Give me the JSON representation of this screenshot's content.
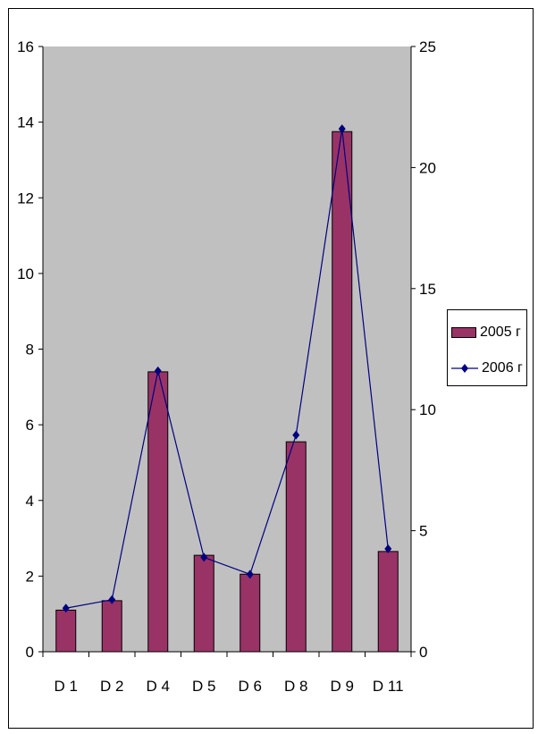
{
  "chart_data": {
    "type": "bar+line",
    "categories": [
      "D 1",
      "D 2",
      "D 4",
      "D 5",
      "D 6",
      "D 8",
      "D 9",
      "D 11"
    ],
    "series": [
      {
        "name": "2005 г",
        "type": "bar",
        "axis": "left",
        "values": [
          1.1,
          1.35,
          7.4,
          2.55,
          2.05,
          5.55,
          13.75,
          2.65
        ]
      },
      {
        "name": "2006 г",
        "type": "line",
        "axis": "right",
        "values": [
          1.8,
          2.15,
          11.6,
          3.9,
          3.2,
          8.95,
          21.6,
          4.25
        ]
      }
    ],
    "y_left": {
      "min": 0,
      "max": 16,
      "ticks": [
        "0",
        "2",
        "4",
        "6",
        "8",
        "10",
        "12",
        "14",
        "16"
      ]
    },
    "y_right": {
      "min": 0,
      "max": 25,
      "ticks": [
        "0",
        "5",
        "10",
        "15",
        "20",
        "25"
      ]
    },
    "grid": false,
    "legend": "right",
    "colors": {
      "plot_area": "#c0c0c0",
      "bar": "#993366",
      "line": "#000080",
      "marker": "#000080"
    }
  },
  "legend": {
    "items": [
      "2005 г",
      "2006 г"
    ]
  }
}
